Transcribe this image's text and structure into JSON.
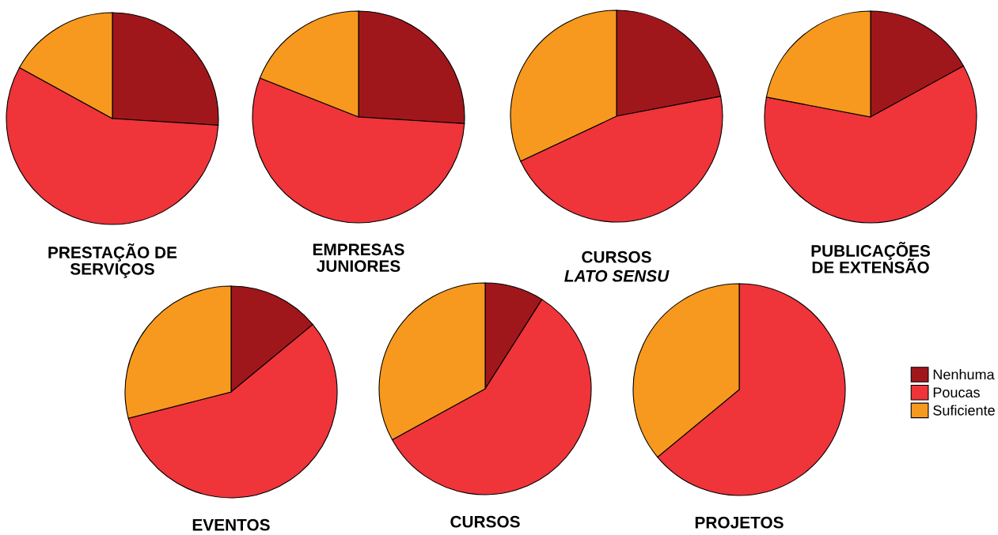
{
  "chart_data": [
    {
      "type": "pie",
      "title": "PRESTAÇÃO DE\nSERVIÇOS",
      "categories": [
        "Nenhuma",
        "Poucas",
        "Suficiente"
      ],
      "values": [
        26,
        57,
        17
      ],
      "colors": [
        "#a0171b",
        "#ef343a",
        "#f7991e"
      ],
      "legend": "bottom right"
    },
    {
      "type": "pie",
      "title": "EMPRESAS\nJUNIORES",
      "categories": [
        null,
        null,
        null
      ],
      "values": [
        26,
        55,
        19
      ],
      "colors": [
        "#a0171b",
        "#ef343a",
        "#f7991e"
      ]
    },
    {
      "type": "pie",
      "title": "CURSOS",
      "subtitle": "LATO SENSU",
      "categories": [
        null,
        null,
        null
      ],
      "values": [
        22,
        46,
        32
      ],
      "colors": [
        "#a0171b",
        "#ef343a",
        "#f7991e"
      ]
    },
    {
      "type": "pie",
      "title": "PUBLICAÇÕES\nDE EXTENSÃO",
      "categories": [
        null,
        null,
        null
      ],
      "values": [
        17,
        61,
        22
      ],
      "colors": [
        "#a0171b",
        "#ef343a",
        "#f7991e"
      ]
    },
    {
      "type": "pie",
      "title": "EVENTOS",
      "categories": [
        null,
        null,
        null
      ],
      "values": [
        14,
        57,
        29
      ],
      "colors": [
        "#a0171b",
        "#ef343a",
        "#f7991e"
      ]
    },
    {
      "type": "pie",
      "title": "CURSOS",
      "categories": [
        null,
        null,
        null
      ],
      "values": [
        9,
        58,
        33
      ],
      "colors": [
        "#a0171b",
        "#ef343a",
        "#f7991e"
      ]
    },
    {
      "type": "pie",
      "title": "PROJETOS",
      "categories": [
        null,
        null,
        null
      ],
      "values": [
        0,
        64,
        36
      ],
      "colors": [
        "#a0171b",
        "#ef343a",
        "#f7991e"
      ]
    }
  ]
}
